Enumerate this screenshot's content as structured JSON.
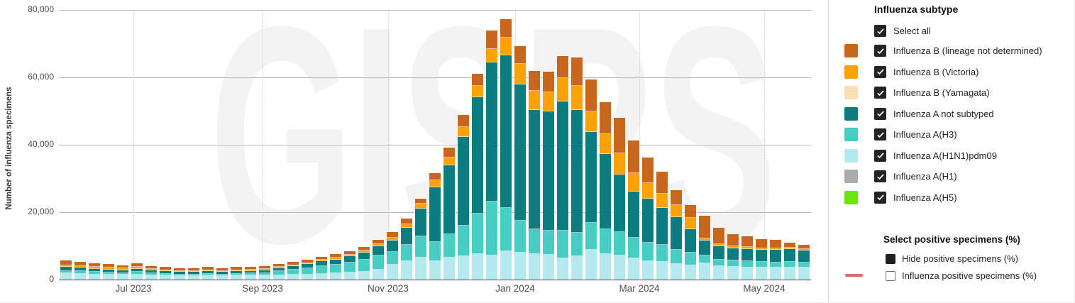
{
  "chart_data": {
    "type": "bar",
    "stacked": true,
    "ylabel": "Number of influenza specimens",
    "ylim": [
      0,
      80000
    ],
    "grid": "horizontal solid + vertical dotted month lines",
    "legend_position": "right panel (slicer checkboxes)",
    "watermark": "GISRS",
    "y_ticks": [
      {
        "label": "0",
        "value": 0
      },
      {
        "label": "20,000",
        "value": 20000
      },
      {
        "label": "40,000",
        "value": 40000
      },
      {
        "label": "60,000",
        "value": 60000
      },
      {
        "label": "80,000",
        "value": 80000
      }
    ],
    "x_ticks": [
      {
        "label": "Jul 2023",
        "pos": 0.0991
      },
      {
        "label": "Sep 2023",
        "pos": 0.2708
      },
      {
        "label": "Nov 2023",
        "pos": 0.4377
      },
      {
        "label": "Jan 2024",
        "pos": 0.6066
      },
      {
        "label": "Mar 2024",
        "pos": 0.7717
      },
      {
        "label": "May 2024",
        "pos": 0.9377
      }
    ],
    "categories": [
      "2023-05-22",
      "2023-05-29",
      "2023-06-05",
      "2023-06-12",
      "2023-06-19",
      "2023-06-26",
      "2023-07-03",
      "2023-07-10",
      "2023-07-17",
      "2023-07-24",
      "2023-07-31",
      "2023-08-07",
      "2023-08-14",
      "2023-08-21",
      "2023-08-28",
      "2023-09-04",
      "2023-09-11",
      "2023-09-18",
      "2023-09-25",
      "2023-10-02",
      "2023-10-09",
      "2023-10-16",
      "2023-10-23",
      "2023-10-30",
      "2023-11-06",
      "2023-11-13",
      "2023-11-20",
      "2023-11-27",
      "2023-12-04",
      "2023-12-11",
      "2023-12-18",
      "2023-12-25",
      "2024-01-01",
      "2024-01-08",
      "2024-01-15",
      "2024-01-22",
      "2024-01-29",
      "2024-02-05",
      "2024-02-12",
      "2024-02-19",
      "2024-02-26",
      "2024-03-04",
      "2024-03-11",
      "2024-03-18",
      "2024-03-25",
      "2024-04-01",
      "2024-04-08",
      "2024-04-15",
      "2024-04-22",
      "2024-04-29",
      "2024-05-06",
      "2024-05-13",
      "2024-05-20"
    ],
    "series": [
      {
        "key": "a-h1n1-pdm09",
        "name": "Influenza A(H1N1)pdm09",
        "color": "#B4E9EF",
        "values": [
          1800,
          1700,
          1570,
          1470,
          1380,
          1570,
          1310,
          1180,
          1090,
          1090,
          1180,
          1090,
          1180,
          1250,
          1280,
          1290,
          1400,
          1500,
          1700,
          1900,
          2100,
          2400,
          3000,
          4400,
          5400,
          6600,
          5500,
          6500,
          7000,
          7500,
          7200,
          8500,
          8000,
          7500,
          7400,
          6400,
          7000,
          8800,
          7500,
          7200,
          6300,
          5500,
          5300,
          4600,
          4200,
          4800,
          4000,
          3700,
          3600,
          3500,
          3500,
          3660,
          3500
        ]
      },
      {
        "key": "a-h3",
        "name": "Influenza A(H3)",
        "color": "#47CDC4",
        "values": [
          800,
          750,
          700,
          650,
          600,
          700,
          570,
          520,
          480,
          480,
          520,
          480,
          520,
          550,
          560,
          1150,
          1500,
          1900,
          2300,
          2600,
          3000,
          3400,
          4100,
          3900,
          5000,
          6300,
          5600,
          7000,
          9000,
          12000,
          16000,
          12800,
          9500,
          7500,
          7200,
          8100,
          7000,
          8100,
          7500,
          7000,
          6200,
          5500,
          5000,
          4300,
          3800,
          2300,
          2000,
          1900,
          1800,
          1700,
          1600,
          1550,
          1500
        ]
      },
      {
        "key": "a-not-subtyped",
        "name": "Influenza A not subtyped",
        "color": "#0B7D80",
        "values": [
          1100,
          1050,
          980,
          920,
          860,
          980,
          820,
          740,
          680,
          680,
          740,
          680,
          740,
          780,
          800,
          920,
          1000,
          1200,
          1400,
          1500,
          1800,
          2200,
          2800,
          3200,
          4900,
          8200,
          16300,
          20300,
          26300,
          34600,
          41300,
          45200,
          40500,
          35400,
          35400,
          38400,
          36300,
          26900,
          22200,
          16900,
          13700,
          13100,
          11000,
          9600,
          7000,
          4400,
          3800,
          3600,
          3700,
          3600,
          3700,
          3800,
          3600
        ]
      },
      {
        "key": "b-victoria",
        "name": "Influenza B (Victoria)",
        "color": "#FCA205",
        "values": [
          600,
          570,
          530,
          500,
          460,
          530,
          440,
          400,
          370,
          370,
          400,
          370,
          400,
          420,
          430,
          340,
          350,
          350,
          400,
          450,
          500,
          550,
          700,
          1000,
          1200,
          1500,
          2100,
          2500,
          3000,
          3300,
          4000,
          5300,
          6000,
          5500,
          5600,
          6900,
          7200,
          6100,
          6000,
          6300,
          5300,
          4600,
          4200,
          3700,
          3300,
          800,
          700,
          600,
          600,
          550,
          500,
          420,
          400
        ]
      },
      {
        "key": "b-lineage-nd",
        "name": "Influenza B (lineage not determined)",
        "color": "#C9661E",
        "values": [
          1300,
          1230,
          1120,
          1060,
          1000,
          1120,
          960,
          860,
          780,
          780,
          860,
          780,
          860,
          900,
          930,
          900,
          950,
          950,
          1000,
          1050,
          1100,
          1150,
          1200,
          1600,
          1600,
          1500,
          2000,
          2800,
          3500,
          3700,
          5500,
          5500,
          5200,
          6000,
          6200,
          6500,
          8300,
          9500,
          9500,
          10700,
          9700,
          7500,
          6500,
          4400,
          3800,
          6700,
          4800,
          3600,
          3200,
          2650,
          2400,
          1480,
          1300
        ]
      }
    ]
  },
  "legend": {
    "title": "Influenza subtype",
    "select_all_label": "Select all",
    "checkbox_color": "#252423",
    "items": [
      {
        "label": "Influenza B (lineage not determined)",
        "color": "#C9661E",
        "checked": true
      },
      {
        "label": "Influenza B (Victoria)",
        "color": "#FCA205",
        "checked": true
      },
      {
        "label": "Influenza B (Yamagata)",
        "color": "#FADFB4",
        "checked": true
      },
      {
        "label": "Influenza A not subtyped",
        "color": "#0B7D80",
        "checked": true
      },
      {
        "label": "Influenza A(H3)",
        "color": "#47CDC4",
        "checked": true
      },
      {
        "label": "Influenza A(H1N1)pdm09",
        "color": "#B4E9EF",
        "checked": true
      },
      {
        "label": "Influenza A(H1)",
        "color": "#ABABAB",
        "checked": true
      },
      {
        "label": "Influenza A(H5)",
        "color": "#66E80A",
        "checked": true
      }
    ],
    "positive": {
      "title": "Select positive specimens (%)",
      "hide_label": "Hide positive specimens (%)",
      "hide_checked": true,
      "line_label": "Influenza positive specimens (%)",
      "line_checked": false,
      "line_color": "#E0696C"
    }
  }
}
